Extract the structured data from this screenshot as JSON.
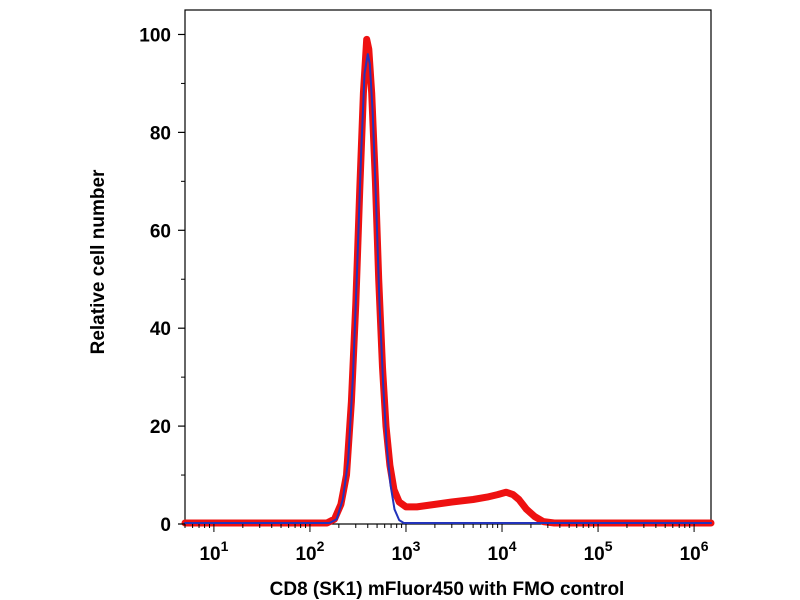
{
  "chart_data": {
    "type": "line",
    "title": "",
    "xlabel": "CD8 (SK1) mFluor450 with FMO control",
    "ylabel": "Relative cell number",
    "x_scale": "log",
    "xlim": [
      5,
      1500000
    ],
    "ylim": [
      0,
      105
    ],
    "x_ticks": [
      {
        "value": 10,
        "base": "10",
        "exp": "1"
      },
      {
        "value": 100,
        "base": "10",
        "exp": "2"
      },
      {
        "value": 1000,
        "base": "10",
        "exp": "3"
      },
      {
        "value": 10000,
        "base": "10",
        "exp": "4"
      },
      {
        "value": 100000,
        "base": "10",
        "exp": "5"
      },
      {
        "value": 1000000,
        "base": "10",
        "exp": "6"
      }
    ],
    "y_ticks": [
      "0",
      "20",
      "40",
      "60",
      "80",
      "100"
    ],
    "grid": false,
    "legend": "none",
    "series": [
      {
        "color": "#ee1111",
        "points": [
          [
            5,
            0.2
          ],
          [
            150,
            0.2
          ],
          [
            180,
            1
          ],
          [
            210,
            4
          ],
          [
            240,
            10
          ],
          [
            270,
            25
          ],
          [
            300,
            45
          ],
          [
            330,
            68
          ],
          [
            360,
            88
          ],
          [
            390,
            99
          ],
          [
            410,
            97
          ],
          [
            440,
            88
          ],
          [
            480,
            70
          ],
          [
            520,
            50
          ],
          [
            570,
            32
          ],
          [
            620,
            20
          ],
          [
            680,
            12
          ],
          [
            750,
            7
          ],
          [
            850,
            4.5
          ],
          [
            1000,
            3.5
          ],
          [
            1300,
            3.5
          ],
          [
            2000,
            4
          ],
          [
            3000,
            4.5
          ],
          [
            5000,
            5
          ],
          [
            7000,
            5.5
          ],
          [
            9000,
            6
          ],
          [
            11000,
            6.5
          ],
          [
            13000,
            6
          ],
          [
            15000,
            5
          ],
          [
            18000,
            3
          ],
          [
            22000,
            1.5
          ],
          [
            27000,
            0.5
          ],
          [
            35000,
            0.2
          ],
          [
            1500000,
            0.2
          ]
        ]
      },
      {
        "color": "#2233bb",
        "points": [
          [
            5,
            0.2
          ],
          [
            160,
            0.2
          ],
          [
            190,
            1
          ],
          [
            220,
            5
          ],
          [
            250,
            13
          ],
          [
            280,
            30
          ],
          [
            310,
            52
          ],
          [
            340,
            75
          ],
          [
            370,
            92
          ],
          [
            400,
            96
          ],
          [
            420,
            94
          ],
          [
            450,
            84
          ],
          [
            490,
            65
          ],
          [
            530,
            45
          ],
          [
            580,
            28
          ],
          [
            630,
            16
          ],
          [
            690,
            8
          ],
          [
            760,
            3
          ],
          [
            850,
            0.8
          ],
          [
            950,
            0.2
          ],
          [
            1500000,
            0.2
          ]
        ]
      }
    ]
  }
}
